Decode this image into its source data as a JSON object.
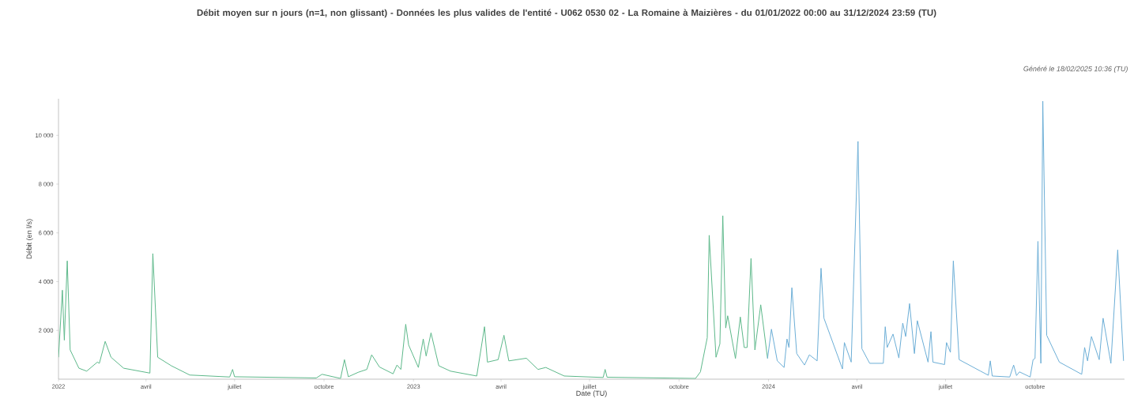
{
  "chart_data": {
    "type": "line",
    "title": "Débit moyen sur n jours (n=1, non glissant) - Données les plus valides de l'entité - U062 0530 02 - La Romaine à Maizières - du 01/01/2022 00:00 au 31/12/2024 23:59 (TU)",
    "annotations": [
      "Généré le 18/02/2025 10:36 (TU)"
    ],
    "xlabel": "Date (TU)",
    "ylabel": "Débit (en l/s)",
    "xlim": [
      "2022-01-01",
      "2024-12-31T23:59"
    ],
    "ylim": [
      0,
      11500
    ],
    "xticks": [
      {
        "value": "2022-01-01",
        "label": "2022"
      },
      {
        "value": "2022-04-01",
        "label": "avril"
      },
      {
        "value": "2022-07-01",
        "label": "juillet"
      },
      {
        "value": "2022-10-01",
        "label": "octobre"
      },
      {
        "value": "2023-01-01",
        "label": "2023"
      },
      {
        "value": "2023-04-01",
        "label": "avril"
      },
      {
        "value": "2023-07-01",
        "label": "juillet"
      },
      {
        "value": "2023-10-01",
        "label": "octobre"
      },
      {
        "value": "2024-01-01",
        "label": "2024"
      },
      {
        "value": "2024-04-01",
        "label": "avril"
      },
      {
        "value": "2024-07-01",
        "label": "juillet"
      },
      {
        "value": "2024-10-01",
        "label": "octobre"
      }
    ],
    "yticks": [
      {
        "value": 2000,
        "label": "2 000"
      },
      {
        "value": 4000,
        "label": "4 000"
      },
      {
        "value": 6000,
        "label": "6 000"
      },
      {
        "value": 8000,
        "label": "8 000"
      },
      {
        "value": 10000,
        "label": "10 000"
      }
    ],
    "series": [
      {
        "color": "#5cb88a",
        "x": [
          "2022-01-01",
          "2022-01-05",
          "2022-01-07",
          "2022-01-10",
          "2022-01-13",
          "2022-01-22",
          "2022-01-30",
          "2022-02-10",
          "2022-02-12",
          "2022-02-18",
          "2022-02-24",
          "2022-03-09",
          "2022-04-05",
          "2022-04-08",
          "2022-04-13",
          "2022-04-27",
          "2022-05-16",
          "2022-06-26",
          "2022-06-29",
          "2022-07-01",
          "2022-09-23",
          "2022-09-29",
          "2022-10-18",
          "2022-10-22",
          "2022-10-26",
          "2022-11-05",
          "2022-11-14",
          "2022-11-19",
          "2022-11-27",
          "2022-12-11",
          "2022-12-15",
          "2022-12-19",
          "2022-12-24",
          "2022-12-27",
          "2023-01-06",
          "2023-01-11",
          "2023-01-14",
          "2023-01-19",
          "2023-01-27",
          "2023-02-08",
          "2023-03-07",
          "2023-03-15",
          "2023-03-18",
          "2023-03-29",
          "2023-04-04",
          "2023-04-09",
          "2023-04-27",
          "2023-05-09",
          "2023-05-17",
          "2023-06-05",
          "2023-07-15",
          "2023-07-17",
          "2023-07-19",
          "2023-10-18",
          "2023-10-23",
          "2023-10-28",
          "2023-10-30",
          "2023-11-01",
          "2023-11-08",
          "2023-11-12",
          "2023-11-15",
          "2023-11-18",
          "2023-11-20",
          "2023-11-28",
          "2023-12-03",
          "2023-12-07",
          "2023-12-10",
          "2023-12-14",
          "2023-12-18",
          "2023-12-24",
          "2023-12-31"
        ],
        "values": [
          900,
          3650,
          1600,
          4850,
          1200,
          450,
          330,
          700,
          650,
          1550,
          900,
          450,
          250,
          5150,
          900,
          550,
          170,
          90,
          400,
          100,
          50,
          200,
          30,
          800,
          100,
          280,
          400,
          1000,
          500,
          220,
          580,
          400,
          2250,
          1400,
          480,
          1650,
          950,
          1900,
          550,
          330,
          130,
          2150,
          700,
          800,
          1800,
          750,
          860,
          400,
          480,
          130,
          70,
          400,
          80,
          30,
          300,
          1300,
          1700,
          5900,
          900,
          1450,
          6700,
          2100,
          2600,
          850,
          2550,
          1300,
          1300,
          4950,
          1200,
          3050,
          850
        ]
      },
      {
        "color": "#6baed6",
        "x": [
          "2023-12-31",
          "2024-01-04",
          "2024-01-10",
          "2024-01-17",
          "2024-01-20",
          "2024-01-22",
          "2024-01-25",
          "2024-01-30",
          "2024-02-07",
          "2024-02-12",
          "2024-02-20",
          "2024-02-24",
          "2024-02-27",
          "2024-03-17",
          "2024-03-19",
          "2024-03-26",
          "2024-04-02",
          "2024-04-06",
          "2024-04-14",
          "2024-04-28",
          "2024-04-30",
          "2024-05-02",
          "2024-05-08",
          "2024-05-14",
          "2024-05-18",
          "2024-05-21",
          "2024-05-25",
          "2024-05-30",
          "2024-06-02",
          "2024-06-13",
          "2024-06-16",
          "2024-06-18",
          "2024-06-30",
          "2024-07-02",
          "2024-07-06",
          "2024-07-09",
          "2024-07-15",
          "2024-08-06",
          "2024-08-14",
          "2024-08-16",
          "2024-08-18",
          "2024-09-05",
          "2024-09-09",
          "2024-09-12",
          "2024-09-15",
          "2024-09-26",
          "2024-09-29",
          "2024-10-01",
          "2024-10-04",
          "2024-10-07",
          "2024-10-09",
          "2024-10-13",
          "2024-10-26",
          "2024-11-18",
          "2024-11-21",
          "2024-11-24",
          "2024-11-28",
          "2024-12-06",
          "2024-12-10",
          "2024-12-18",
          "2024-12-25",
          "2024-12-31"
        ],
        "values": [
          850,
          2050,
          750,
          480,
          1650,
          1300,
          3750,
          1050,
          580,
          1000,
          750,
          4550,
          2500,
          420,
          1500,
          700,
          9750,
          1250,
          650,
          650,
          2150,
          1300,
          1850,
          870,
          2300,
          1750,
          3100,
          1050,
          2400,
          700,
          1950,
          700,
          600,
          1500,
          1100,
          4850,
          800,
          330,
          160,
          750,
          130,
          90,
          580,
          150,
          300,
          90,
          800,
          850,
          5650,
          650,
          11400,
          1800,
          700,
          200,
          1300,
          750,
          1750,
          800,
          2500,
          650,
          5300,
          750
        ]
      }
    ]
  }
}
